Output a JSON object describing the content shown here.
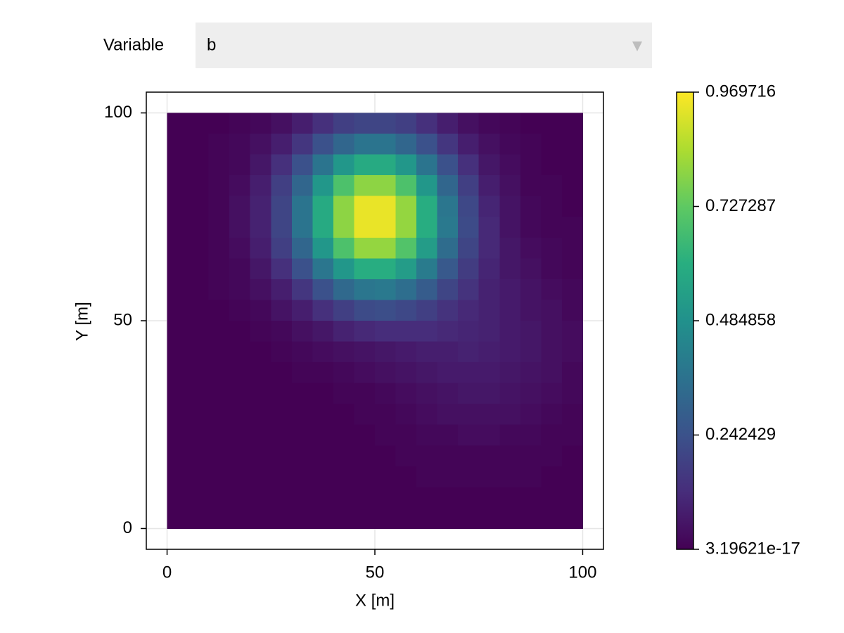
{
  "menu": {
    "label": "Variable",
    "selected": "b"
  },
  "chart_data": {
    "type": "heatmap",
    "x_label": "X [m]",
    "y_label": "Y [m]",
    "xlim": [
      -5,
      105
    ],
    "ylim": [
      -5,
      105
    ],
    "xticks": [
      0,
      50,
      100
    ],
    "yticks": [
      0,
      50,
      100
    ],
    "grid": true,
    "colormap": "viridis",
    "clim": [
      3.19621e-17,
      0.969716
    ],
    "cticks": [
      3.19621e-17,
      0.242429,
      0.484858,
      0.727287,
      0.969716
    ],
    "x": [
      2.5,
      7.5,
      12.5,
      17.5,
      22.5,
      27.5,
      32.5,
      37.5,
      42.5,
      47.5,
      52.5,
      57.5,
      62.5,
      67.5,
      72.5,
      77.5,
      82.5,
      87.5,
      92.5,
      97.5
    ],
    "y": [
      97.5,
      92.5,
      87.5,
      82.5,
      77.5,
      72.5,
      67.5,
      62.5,
      57.5,
      52.5,
      47.5,
      42.5,
      37.5,
      32.5,
      27.5,
      22.5,
      17.5,
      12.5,
      7.5,
      2.5
    ],
    "values": [
      [
        0,
        0,
        0,
        0.01,
        0.02,
        0.04,
        0.08,
        0.13,
        0.18,
        0.2,
        0.2,
        0.18,
        0.13,
        0.08,
        0.04,
        0.02,
        0.01,
        0,
        0,
        0
      ],
      [
        0,
        0,
        0.01,
        0.02,
        0.04,
        0.08,
        0.15,
        0.24,
        0.32,
        0.37,
        0.37,
        0.32,
        0.24,
        0.15,
        0.08,
        0.04,
        0.02,
        0.01,
        0,
        0
      ],
      [
        0,
        0,
        0.01,
        0.02,
        0.06,
        0.13,
        0.24,
        0.37,
        0.51,
        0.59,
        0.59,
        0.51,
        0.37,
        0.24,
        0.13,
        0.06,
        0.03,
        0.01,
        0,
        0
      ],
      [
        0,
        0,
        0.01,
        0.03,
        0.08,
        0.18,
        0.32,
        0.51,
        0.69,
        0.8,
        0.8,
        0.69,
        0.51,
        0.32,
        0.18,
        0.08,
        0.04,
        0.01,
        0.01,
        0
      ],
      [
        0,
        0,
        0.01,
        0.04,
        0.09,
        0.2,
        0.37,
        0.59,
        0.8,
        0.94,
        0.94,
        0.81,
        0.6,
        0.38,
        0.21,
        0.1,
        0.05,
        0.02,
        0.01,
        0
      ],
      [
        0,
        0,
        0.01,
        0.04,
        0.09,
        0.2,
        0.37,
        0.59,
        0.8,
        0.94,
        0.94,
        0.81,
        0.6,
        0.39,
        0.22,
        0.11,
        0.05,
        0.02,
        0.01,
        0.01
      ],
      [
        0,
        0,
        0.01,
        0.03,
        0.08,
        0.18,
        0.32,
        0.51,
        0.69,
        0.81,
        0.81,
        0.7,
        0.53,
        0.34,
        0.2,
        0.11,
        0.06,
        0.03,
        0.02,
        0.01
      ],
      [
        0,
        0,
        0.01,
        0.02,
        0.06,
        0.13,
        0.24,
        0.38,
        0.51,
        0.6,
        0.6,
        0.53,
        0.4,
        0.27,
        0.17,
        0.1,
        0.06,
        0.04,
        0.02,
        0.01
      ],
      [
        0,
        0,
        0.01,
        0.02,
        0.04,
        0.08,
        0.15,
        0.24,
        0.33,
        0.38,
        0.39,
        0.35,
        0.28,
        0.2,
        0.14,
        0.09,
        0.07,
        0.05,
        0.03,
        0.02
      ],
      [
        0,
        0,
        0,
        0.01,
        0.02,
        0.05,
        0.08,
        0.13,
        0.18,
        0.22,
        0.23,
        0.21,
        0.18,
        0.14,
        0.11,
        0.09,
        0.07,
        0.05,
        0.04,
        0.02
      ],
      [
        0,
        0,
        0,
        0,
        0.01,
        0.02,
        0.04,
        0.06,
        0.09,
        0.11,
        0.12,
        0.12,
        0.12,
        0.11,
        0.1,
        0.09,
        0.07,
        0.06,
        0.04,
        0.03
      ],
      [
        0,
        0,
        0,
        0,
        0,
        0.01,
        0.02,
        0.03,
        0.04,
        0.05,
        0.06,
        0.07,
        0.08,
        0.08,
        0.09,
        0.08,
        0.07,
        0.06,
        0.04,
        0.03
      ],
      [
        0,
        0,
        0,
        0,
        0,
        0,
        0.01,
        0.01,
        0.02,
        0.03,
        0.04,
        0.05,
        0.06,
        0.07,
        0.07,
        0.07,
        0.06,
        0.05,
        0.04,
        0.02
      ],
      [
        0,
        0,
        0,
        0,
        0,
        0,
        0,
        0,
        0.01,
        0.01,
        0.02,
        0.03,
        0.04,
        0.05,
        0.06,
        0.06,
        0.05,
        0.04,
        0.03,
        0.02
      ],
      [
        0,
        0,
        0,
        0,
        0,
        0,
        0,
        0,
        0,
        0.01,
        0.01,
        0.02,
        0.03,
        0.04,
        0.04,
        0.04,
        0.04,
        0.03,
        0.02,
        0.01
      ],
      [
        0,
        0,
        0,
        0,
        0,
        0,
        0,
        0,
        0,
        0,
        0.01,
        0.01,
        0.02,
        0.02,
        0.03,
        0.03,
        0.02,
        0.02,
        0.01,
        0.01
      ],
      [
        0,
        0,
        0,
        0,
        0,
        0,
        0,
        0,
        0,
        0,
        0,
        0.01,
        0.01,
        0.01,
        0.01,
        0.01,
        0.01,
        0.01,
        0.01,
        0
      ],
      [
        0,
        0,
        0,
        0,
        0,
        0,
        0,
        0,
        0,
        0,
        0,
        0,
        0.01,
        0.01,
        0.01,
        0.01,
        0.01,
        0.01,
        0,
        0
      ],
      [
        0,
        0,
        0,
        0,
        0,
        0,
        0,
        0,
        0,
        0,
        0,
        0,
        0,
        0,
        0,
        0,
        0,
        0,
        0,
        0
      ],
      [
        0,
        0,
        0,
        0,
        0,
        0,
        0,
        0,
        0,
        0,
        0,
        0,
        0,
        0,
        0,
        0,
        0,
        0,
        0,
        0
      ]
    ]
  }
}
